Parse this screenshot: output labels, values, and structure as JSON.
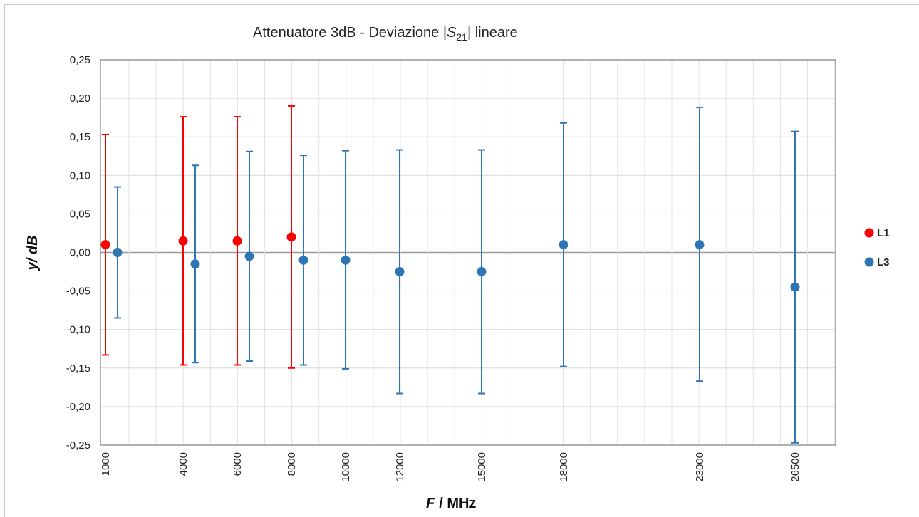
{
  "chart_data": {
    "type": "scatter",
    "title": "Attenuatore 3dB - Deviazione",
    "title_symbol_main": "S",
    "title_symbol_sub": "21",
    "title_suffix": "lineare",
    "xlabel_italic": "F",
    "xlabel_unit": "/ MHz",
    "ylabel": "y/ dB",
    "ylim": [
      -0.25,
      0.25
    ],
    "y_ticks": [
      "0,25",
      "0,20",
      "0,15",
      "0,10",
      "0,05",
      "0,00",
      "-0,05",
      "-0,10",
      "-0,15",
      "-0,20",
      "-0,25"
    ],
    "y_tick_values": [
      0.25,
      0.2,
      0.15,
      0.1,
      0.05,
      0.0,
      -0.05,
      -0.1,
      -0.15,
      -0.2,
      -0.25
    ],
    "x_ticks": [
      "1000",
      "4000",
      "6000",
      "8000",
      "10000",
      "12000",
      "15000",
      "18000",
      "23000",
      "26500"
    ],
    "grid": true,
    "legend_position": "right",
    "series": [
      {
        "name": "L1",
        "color": "#ff0000",
        "points": [
          {
            "x": 1000,
            "y": 0.01,
            "low": -0.133,
            "high": 0.153
          },
          {
            "x": 4000,
            "y": 0.015,
            "low": -0.146,
            "high": 0.176
          },
          {
            "x": 6000,
            "y": 0.015,
            "low": -0.146,
            "high": 0.176
          },
          {
            "x": 8000,
            "y": 0.02,
            "low": -0.15,
            "high": 0.19
          }
        ]
      },
      {
        "name": "L3",
        "color": "#2e75b6",
        "points": [
          {
            "x": 1000,
            "y": 0.0,
            "low": -0.085,
            "high": 0.085
          },
          {
            "x": 4000,
            "y": -0.015,
            "low": -0.143,
            "high": 0.113
          },
          {
            "x": 6000,
            "y": -0.005,
            "low": -0.141,
            "high": 0.131
          },
          {
            "x": 8000,
            "y": -0.01,
            "low": -0.146,
            "high": 0.126
          },
          {
            "x": 10000,
            "y": -0.01,
            "low": -0.151,
            "high": 0.132
          },
          {
            "x": 12000,
            "y": -0.025,
            "low": -0.183,
            "high": 0.133
          },
          {
            "x": 15000,
            "y": -0.025,
            "low": -0.183,
            "high": 0.133
          },
          {
            "x": 18000,
            "y": 0.01,
            "low": -0.148,
            "high": 0.168
          },
          {
            "x": 23000,
            "y": 0.01,
            "low": -0.167,
            "high": 0.188
          },
          {
            "x": 26500,
            "y": -0.045,
            "low": -0.247,
            "high": 0.157
          }
        ]
      }
    ]
  }
}
